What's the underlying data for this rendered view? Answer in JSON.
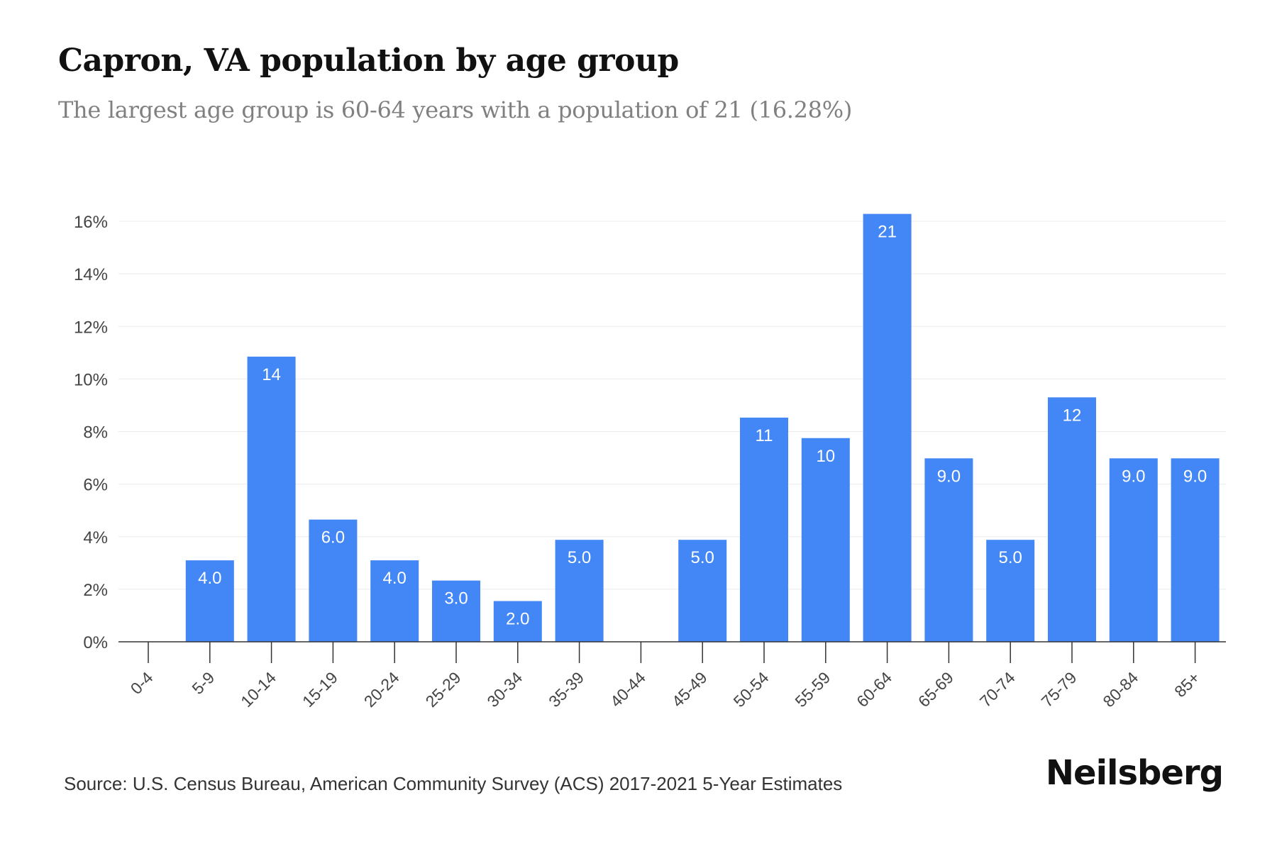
{
  "header": {
    "title": "Capron, VA population by age group",
    "subtitle": "The largest age group is 60-64 years with a population of 21 (16.28%)"
  },
  "footer": {
    "source": "Source: U.S. Census Bureau, American Community Survey (ACS) 2017-2021 5-Year Estimates",
    "brand": "Neilsberg"
  },
  "colors": {
    "bar": "#4287f5",
    "bar_label": "#ffffff",
    "grid": "#ebebeb",
    "axis": "#333333",
    "tick_text": "#444444"
  },
  "chart_data": {
    "type": "bar",
    "categories": [
      "0-4",
      "5-9",
      "10-14",
      "15-19",
      "20-24",
      "25-29",
      "30-34",
      "35-39",
      "40-44",
      "45-49",
      "50-54",
      "55-59",
      "60-64",
      "65-69",
      "70-74",
      "75-79",
      "80-84",
      "85+"
    ],
    "values": [
      0,
      3.1,
      10.85,
      4.65,
      3.1,
      2.33,
      1.55,
      3.88,
      0,
      3.88,
      8.53,
      7.75,
      16.28,
      6.98,
      3.88,
      9.3,
      6.98,
      6.98
    ],
    "data_labels": [
      "",
      "4.0",
      "14",
      "6.0",
      "4.0",
      "3.0",
      "2.0",
      "5.0",
      "",
      "5.0",
      "11",
      "10",
      "21",
      "9.0",
      "5.0",
      "12",
      "9.0",
      "9.0"
    ],
    "y_ticks": [
      0,
      2,
      4,
      6,
      8,
      10,
      12,
      14,
      16
    ],
    "y_tick_labels": [
      "0%",
      "2%",
      "4%",
      "6%",
      "8%",
      "10%",
      "12%",
      "14%",
      "16%"
    ],
    "ylim": [
      0,
      16.5
    ],
    "grid": true,
    "legend": "none"
  }
}
